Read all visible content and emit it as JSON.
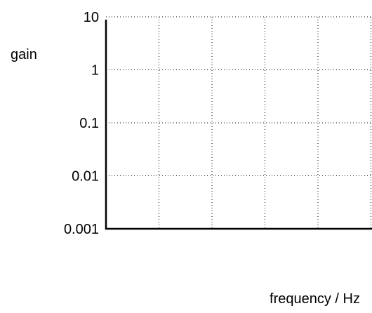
{
  "chart_data": {
    "type": "line",
    "title": "",
    "xlabel": "frequency / Hz",
    "ylabel": "gain",
    "y_scale": "log",
    "ylim": [
      0.001,
      10
    ],
    "y_ticks": [
      10,
      1,
      0.1,
      0.01,
      0.001
    ],
    "y_tick_labels": [
      "10",
      "1",
      "0.1",
      "0.01",
      "0.001"
    ],
    "x_tick_labels": [],
    "x_gridline_count": 5,
    "grid": "dotted",
    "series": []
  }
}
